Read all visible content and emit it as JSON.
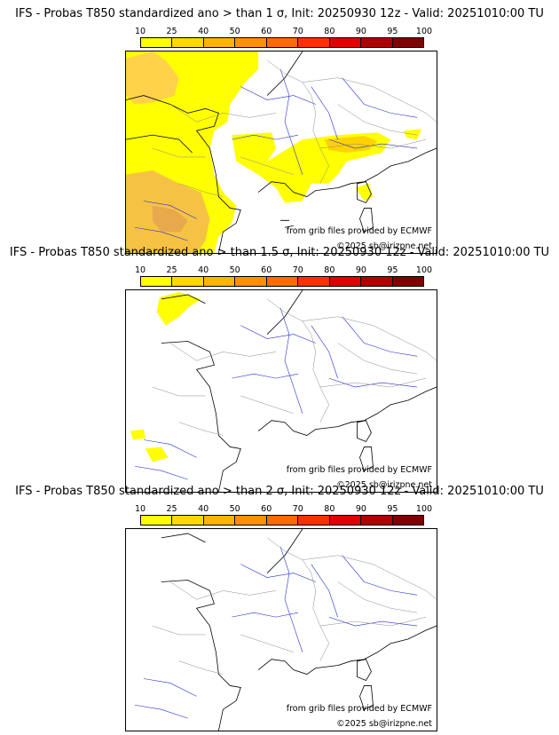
{
  "colorbar": {
    "ticks": [
      "10",
      "25",
      "40",
      "50",
      "60",
      "70",
      "80",
      "90",
      "95",
      "100"
    ],
    "colors": [
      "#ffff00",
      "#ffd800",
      "#ffb400",
      "#ff9000",
      "#ff6a00",
      "#ff3000",
      "#e00000",
      "#b00000",
      "#800000"
    ]
  },
  "panels": [
    {
      "title": "IFS - Probas T850  standardized ano > than 1 σ, Init: 20250930 12z - Valid: 20251010:00 TU",
      "source_note": "from grib files provided by ECMWF",
      "copyright": "©2025 sb@irizpne.net"
    },
    {
      "title": "IFS - Probas T850  standardized ano > than 1.5 σ, Init: 20250930 12z - Valid: 20251010:00 TU",
      "source_note": "from grib files provided by ECMWF",
      "copyright": "©2025 sb@irizpne.net"
    },
    {
      "title": "IFS - Probas T850  standardized ano > than 2 σ, Init: 20250930 12z - Valid: 20251010:00 TU",
      "source_note": "from grib files provided by ECMWF",
      "copyright": "©2025 sb@irizpne.net"
    }
  ]
}
